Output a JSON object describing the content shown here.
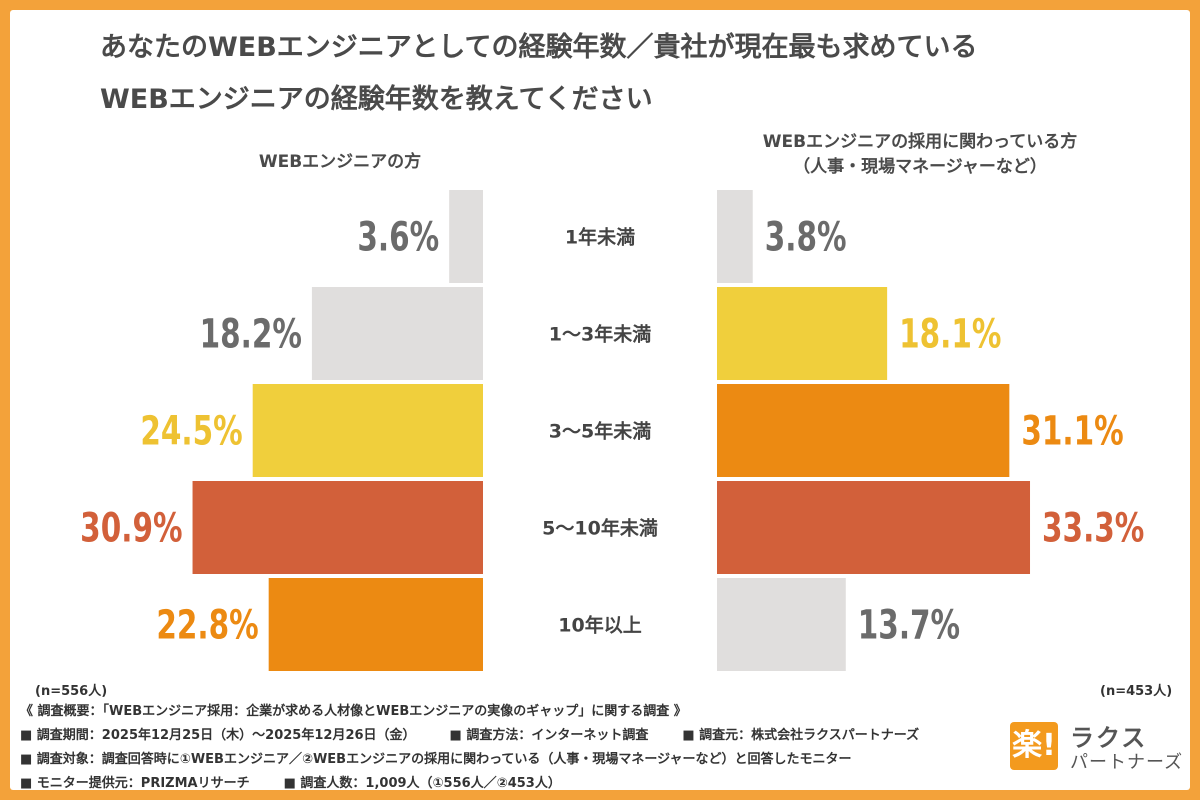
{
  "title_line1": "あなたのWEBエンジニアとしての経験年数／貴社が現在最も求めている",
  "title_line2": "WEBエンジニアの経験年数を教えてください",
  "left_header": "WEBエンジニアの方",
  "right_header_line1": "WEBエンジニアの採用に関わっている方",
  "right_header_line2": "（人事・現場マネージャーなど）",
  "left_n": "(n=556人)",
  "right_n": "(n=453人)",
  "colors": {
    "gray": "#e0dedd",
    "yellow": "#f0cf3c",
    "orange": "#ec8a12",
    "red": "#d2603a",
    "gray_text": "#6b6b6b",
    "yellow_text": "#eec232"
  },
  "chart_data": {
    "type": "bar",
    "categories": [
      "1年未満",
      "1〜3年未満",
      "3〜5年未満",
      "5〜10年未満",
      "10年以上"
    ],
    "series": [
      {
        "name": "WEBエンジニアの方",
        "values": [
          3.6,
          18.2,
          24.5,
          30.9,
          22.8
        ],
        "labels": [
          "3.6%",
          "18.2%",
          "24.5%",
          "30.9%",
          "22.8%"
        ],
        "colors": [
          "gray",
          "gray",
          "yellow",
          "red",
          "orange"
        ]
      },
      {
        "name": "WEBエンジニアの採用に関わっている方",
        "values": [
          3.8,
          18.1,
          31.1,
          33.3,
          13.7
        ],
        "labels": [
          "3.8%",
          "18.1%",
          "31.1%",
          "33.3%",
          "13.7%"
        ],
        "colors": [
          "gray",
          "yellow",
          "orange",
          "red",
          "gray"
        ]
      }
    ]
  },
  "footer": {
    "line1": "《 調査概要：「WEBエンジニア採用：企業が求める人材像とWEBエンジニアの実像のギャップ」に関する調査 》",
    "line2a": "■ 調査期間：2025年12月25日（木）〜2025年12月26日（金）",
    "line2b": "■ 調査方法：インターネット調査",
    "line2c": "■ 調査元：株式会社ラクスパートナーズ",
    "line3": "■ 調査対象：調査回答時に①WEBエンジニア／②WEBエンジニアの採用に関わっている（人事・現場マネージャーなど）と回答したモニター",
    "line4a": "■ モニター提供元：PRIZMAリサーチ",
    "line4b": "■ 調査人数：1,009人（①556人／②453人）"
  },
  "logo": {
    "mark": "楽!",
    "text1": "ラクス",
    "text2": "パートナーズ"
  }
}
